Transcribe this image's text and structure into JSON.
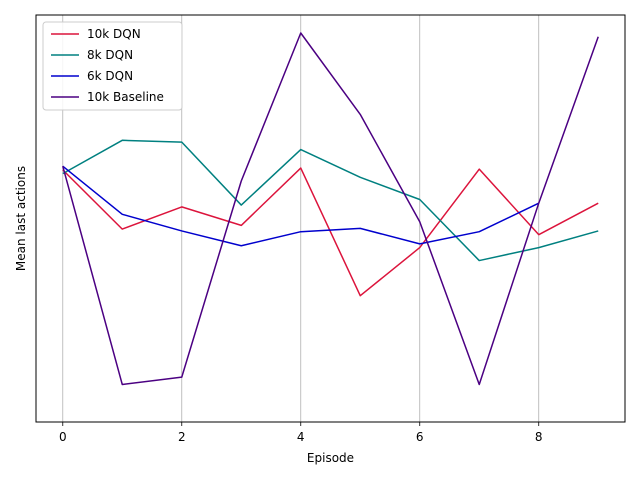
{
  "chart_data": {
    "type": "line",
    "title": "",
    "xlabel": "Episode",
    "ylabel": "Mean last actions",
    "xlim": [
      -0.45,
      9.45
    ],
    "ylim": [
      0,
      1
    ],
    "xticks": [
      0,
      2,
      4,
      6,
      8
    ],
    "xtick_labels": [
      "0",
      "2",
      "4",
      "6",
      "8"
    ],
    "yticks_visible": false,
    "grid": "vertical lines at x ticks",
    "legend_position": "top-left",
    "series": [
      {
        "name": "10k DQN",
        "color": "#dc143c",
        "x": [
          0,
          1,
          2,
          3,
          4,
          5,
          6,
          7,
          8,
          9
        ],
        "y": [
          0.63,
          0.47,
          0.53,
          0.48,
          0.635,
          0.29,
          0.42,
          0.632,
          0.455,
          0.54
        ]
      },
      {
        "name": "8k DQN",
        "color": "#008080",
        "x": [
          0,
          1,
          2,
          3,
          4,
          5,
          6,
          7,
          8,
          9
        ],
        "y": [
          0.62,
          0.71,
          0.705,
          0.535,
          0.685,
          0.61,
          0.55,
          0.385,
          0.42,
          0.465
        ]
      },
      {
        "name": "6k DQN",
        "color": "#0000cd",
        "x": [
          0,
          1,
          2,
          3,
          4,
          5,
          6,
          7,
          8
        ],
        "y": [
          0.64,
          0.51,
          0.465,
          0.425,
          0.463,
          0.472,
          0.43,
          0.463,
          0.54
        ]
      },
      {
        "name": "10k Baseline",
        "color": "#4b0082",
        "x": [
          0,
          1,
          2,
          3,
          4,
          5,
          6,
          7,
          8,
          9
        ],
        "y": [
          0.64,
          0.05,
          0.07,
          0.6,
          1.0,
          0.78,
          0.49,
          0.05,
          0.54,
          0.99
        ]
      }
    ]
  }
}
